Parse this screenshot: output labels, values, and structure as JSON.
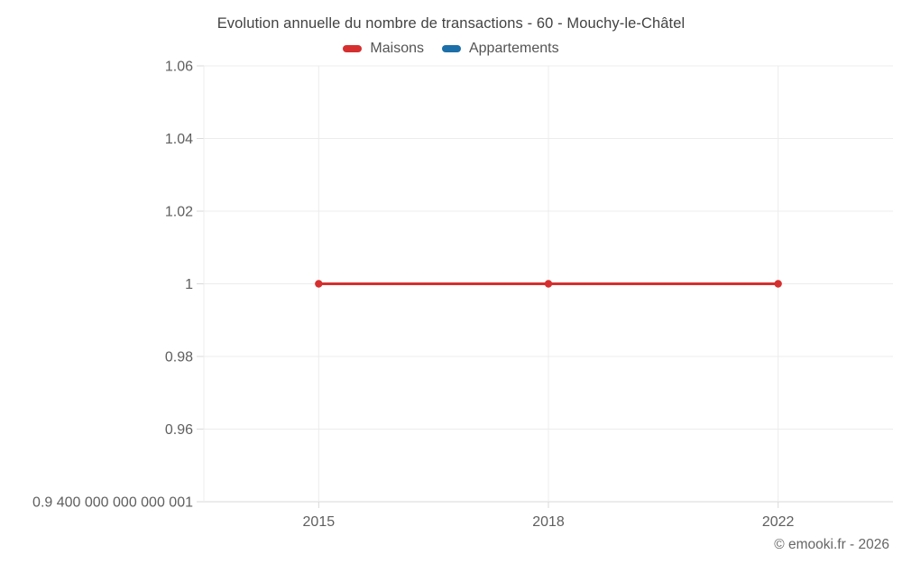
{
  "header": {
    "title": "Evolution annuelle du nombre de transactions - 60 - Mouchy-le-Châtel"
  },
  "legend": {
    "items": [
      {
        "label": "Maisons",
        "color": "#d62f2f"
      },
      {
        "label": "Appartements",
        "color": "#1c6fa8"
      }
    ]
  },
  "footer": {
    "credit": "© emooki.fr - 2026"
  },
  "colors": {
    "grid": "#ececec",
    "axis_line": "#d9d9d9",
    "tick_mark": "#d9d9d9",
    "tick_text": "#5f5f5f"
  },
  "chart_data": {
    "type": "line",
    "title": "Evolution annuelle du nombre de transactions - 60 - Mouchy-le-Châtel",
    "categories": [
      "2015",
      "2018",
      "2022"
    ],
    "series": [
      {
        "name": "Maisons",
        "color": "#d62f2f",
        "values": [
          1,
          1,
          1
        ]
      },
      {
        "name": "Appartements",
        "color": "#1c6fa8",
        "values": [
          null,
          null,
          null
        ]
      }
    ],
    "ylim": [
      0.94,
      1.06
    ],
    "yticks": [
      {
        "value": 1.06,
        "label": "1.06"
      },
      {
        "value": 1.04,
        "label": "1.04"
      },
      {
        "value": 1.02,
        "label": "1.02"
      },
      {
        "value": 1.0,
        "label": "1"
      },
      {
        "value": 0.98,
        "label": "0.98"
      },
      {
        "value": 0.96,
        "label": "0.96"
      },
      {
        "value": 0.94,
        "label": "0.9 400 000 000 000 001"
      }
    ],
    "grid": true,
    "legend_position": "top",
    "x_axis_type": "category-band"
  }
}
